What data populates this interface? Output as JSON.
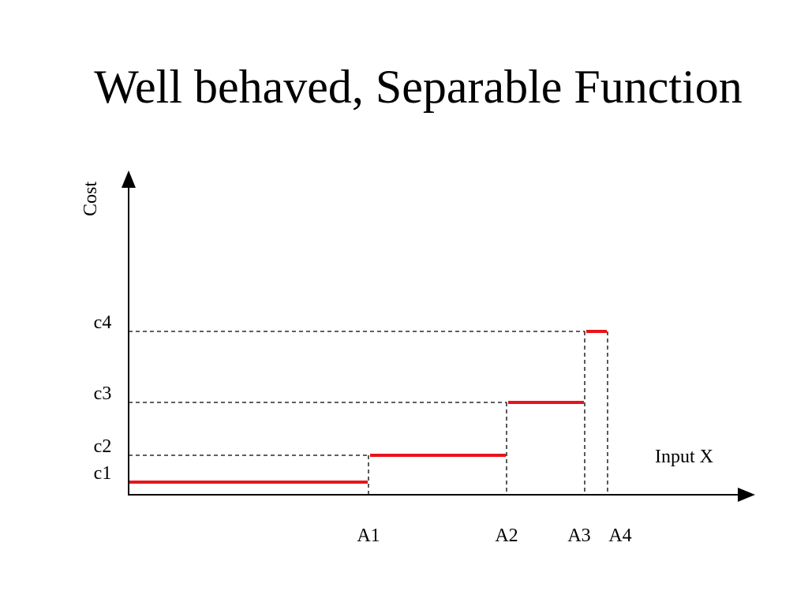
{
  "title": "Well behaved, Separable Function",
  "colors": {
    "step": "#e8141b",
    "axis": "#000000",
    "guide": "#000000"
  },
  "chart_data": {
    "type": "line",
    "title": "Well behaved, Separable Function",
    "xlabel": "Input X",
    "ylabel": "Cost",
    "x_ticks": [
      "A1",
      "A2",
      "A3",
      "A4"
    ],
    "y_ticks": [
      "c1",
      "c2",
      "c3",
      "c4"
    ],
    "series": [
      {
        "segments": [
          {
            "x0": "0",
            "x1": "A1",
            "y": "c1"
          },
          {
            "x0": "A1",
            "x1": "A2",
            "y": "c2"
          },
          {
            "x0": "A2",
            "x1": "A3",
            "y": "c3"
          },
          {
            "x0": "A3",
            "x1": "A4",
            "y": "c4"
          }
        ]
      }
    ],
    "grid": false
  }
}
